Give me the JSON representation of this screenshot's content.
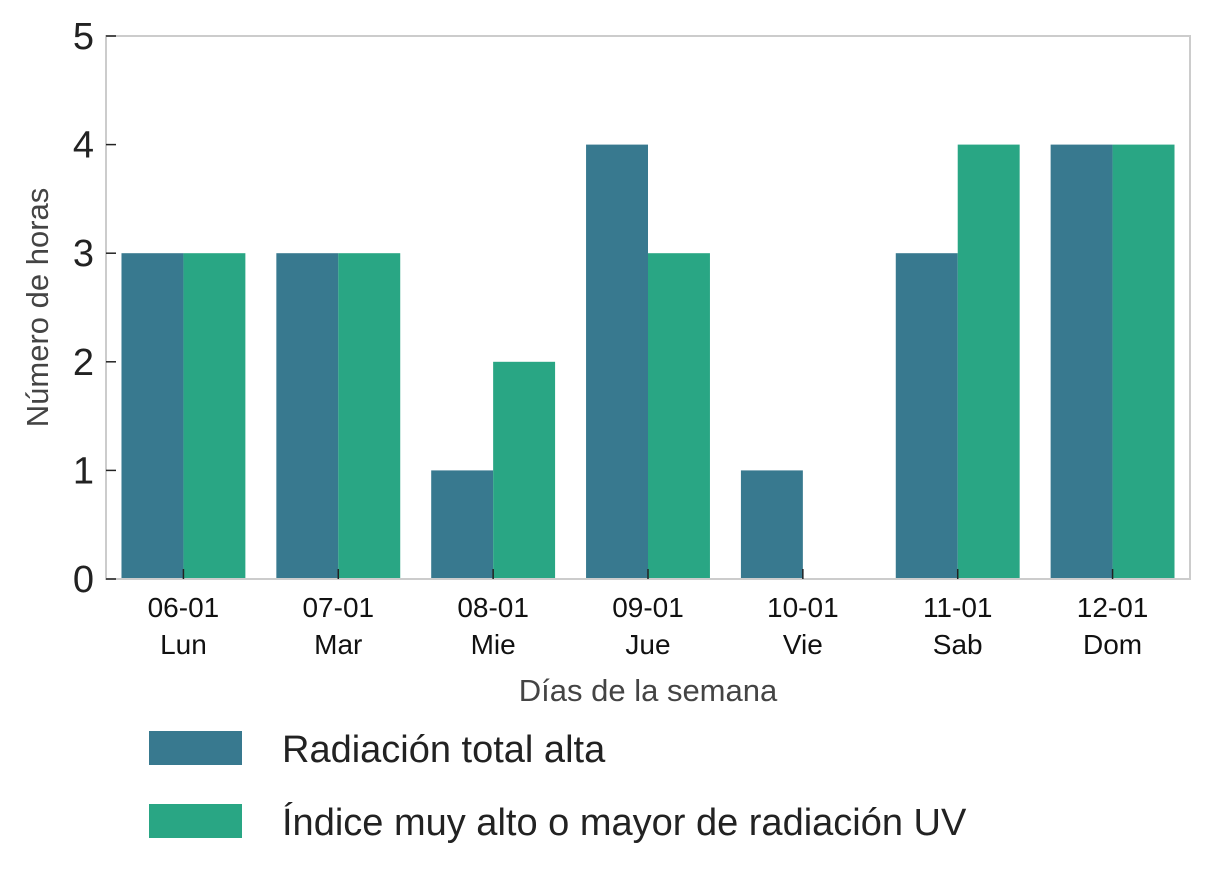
{
  "chart_data": {
    "type": "bar",
    "categories": [
      "06-01\nLun",
      "07-01\nMar",
      "08-01\nMie",
      "09-01\nJue",
      "10-01\nVie",
      "11-01\nSab",
      "12-01\nDom"
    ],
    "category_dates": [
      "06-01",
      "07-01",
      "08-01",
      "09-01",
      "10-01",
      "11-01",
      "12-01"
    ],
    "category_days": [
      "Lun",
      "Mar",
      "Mie",
      "Jue",
      "Vie",
      "Sab",
      "Dom"
    ],
    "series": [
      {
        "name": "Radiación total alta",
        "color": "#38798f",
        "values": [
          3,
          3,
          1,
          4,
          1,
          3,
          4
        ]
      },
      {
        "name": "Índice muy alto o mayor de radiación UV",
        "color": "#29a684",
        "values": [
          3,
          3,
          2,
          3,
          0,
          4,
          4
        ]
      }
    ],
    "title": "",
    "xlabel": "Días de la semana",
    "ylabel": "Número de horas",
    "ylim": [
      0,
      5
    ],
    "yticks": [
      "0",
      "1",
      "2",
      "3",
      "4",
      "5"
    ],
    "grid": false,
    "legend_position": "bottom"
  }
}
